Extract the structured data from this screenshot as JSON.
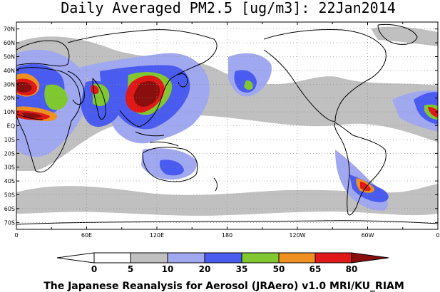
{
  "title": "Daily Averaged PM2.5 [ug/m3]: 22Jan2014",
  "footer": "The Japanese Reanalysis for Aerosol (JRAero) v1.0 MRI/KU_RIAM",
  "lat_labels": [
    "70N",
    "60N",
    "50N",
    "40N",
    "30N",
    "20N",
    "10N",
    "EQ",
    "10S",
    "20S",
    "30S",
    "40S",
    "50S",
    "60S",
    "70S"
  ],
  "lon_labels": [
    "0",
    "60E",
    "120E",
    "180",
    "120W",
    "60W",
    "0"
  ],
  "colorbar": {
    "ticks": [
      "0",
      "5",
      "10",
      "20",
      "35",
      "50",
      "65",
      "80"
    ],
    "colors": [
      "#ffffff",
      "#c0c0c0",
      "#a0a8f0",
      "#4a5cf0",
      "#80c830",
      "#f09020",
      "#e01818",
      "#8a0e0e"
    ]
  }
}
